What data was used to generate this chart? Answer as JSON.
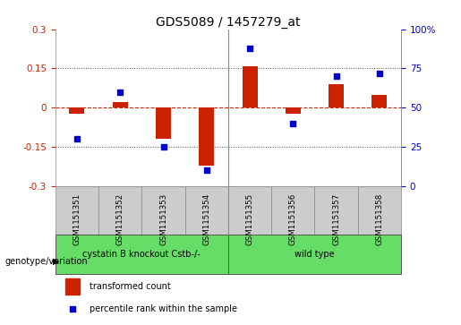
{
  "title": "GDS5089 / 1457279_at",
  "samples": [
    "GSM1151351",
    "GSM1151352",
    "GSM1151353",
    "GSM1151354",
    "GSM1151355",
    "GSM1151356",
    "GSM1151357",
    "GSM1151358"
  ],
  "transformed_count": [
    -0.022,
    0.022,
    -0.12,
    -0.22,
    0.16,
    -0.022,
    0.09,
    0.05
  ],
  "percentile_rank": [
    30,
    60,
    25,
    10,
    88,
    40,
    70,
    72
  ],
  "bar_color": "#cc2200",
  "dot_color": "#0000cc",
  "ylim_left": [
    -0.3,
    0.3
  ],
  "ylim_right": [
    0,
    100
  ],
  "yticks_left": [
    -0.3,
    -0.15,
    0.0,
    0.15,
    0.3
  ],
  "ytick_labels_left": [
    "-0.3",
    "-0.15",
    "0",
    "0.15",
    "0.3"
  ],
  "yticks_right": [
    0,
    25,
    50,
    75,
    100
  ],
  "ytick_labels_right": [
    "0",
    "25",
    "50",
    "75",
    "100%"
  ],
  "group1_label": "cystatin B knockout Cstb-/-",
  "group2_label": "wild type",
  "group1_indices": [
    0,
    1,
    2,
    3
  ],
  "group2_indices": [
    4,
    5,
    6,
    7
  ],
  "group_color": "#66dd66",
  "genotype_label": "genotype/variation",
  "legend_bar_label": "transformed count",
  "legend_dot_label": "percentile rank within the sample",
  "bg_color": "#cccccc",
  "plot_bg": "#ffffff",
  "hline_color": "#cc2200",
  "dotted_line_color": "#555555",
  "bar_width": 0.35,
  "dot_size": 22
}
